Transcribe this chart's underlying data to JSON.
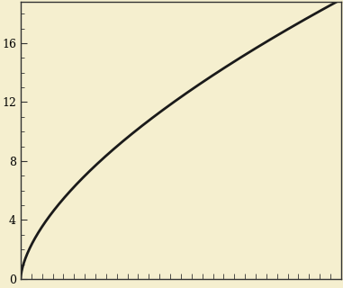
{
  "background_color": "#f5efcf",
  "line_color": "#1a1a1a",
  "line_width": 2.0,
  "yticks": [
    0,
    4,
    8,
    12,
    16
  ],
  "ytick_labels": [
    "0",
    "4",
    "8",
    "12",
    "16"
  ],
  "ylim": [
    0,
    18.8
  ],
  "xlim": [
    0,
    3.0
  ],
  "spine_color": "#333333",
  "tick_color": "#333333",
  "tick_fontsize": 9,
  "curve_a": 9.6,
  "curve_b": 0.62,
  "x_start": 0.0,
  "x_end": 3.0
}
